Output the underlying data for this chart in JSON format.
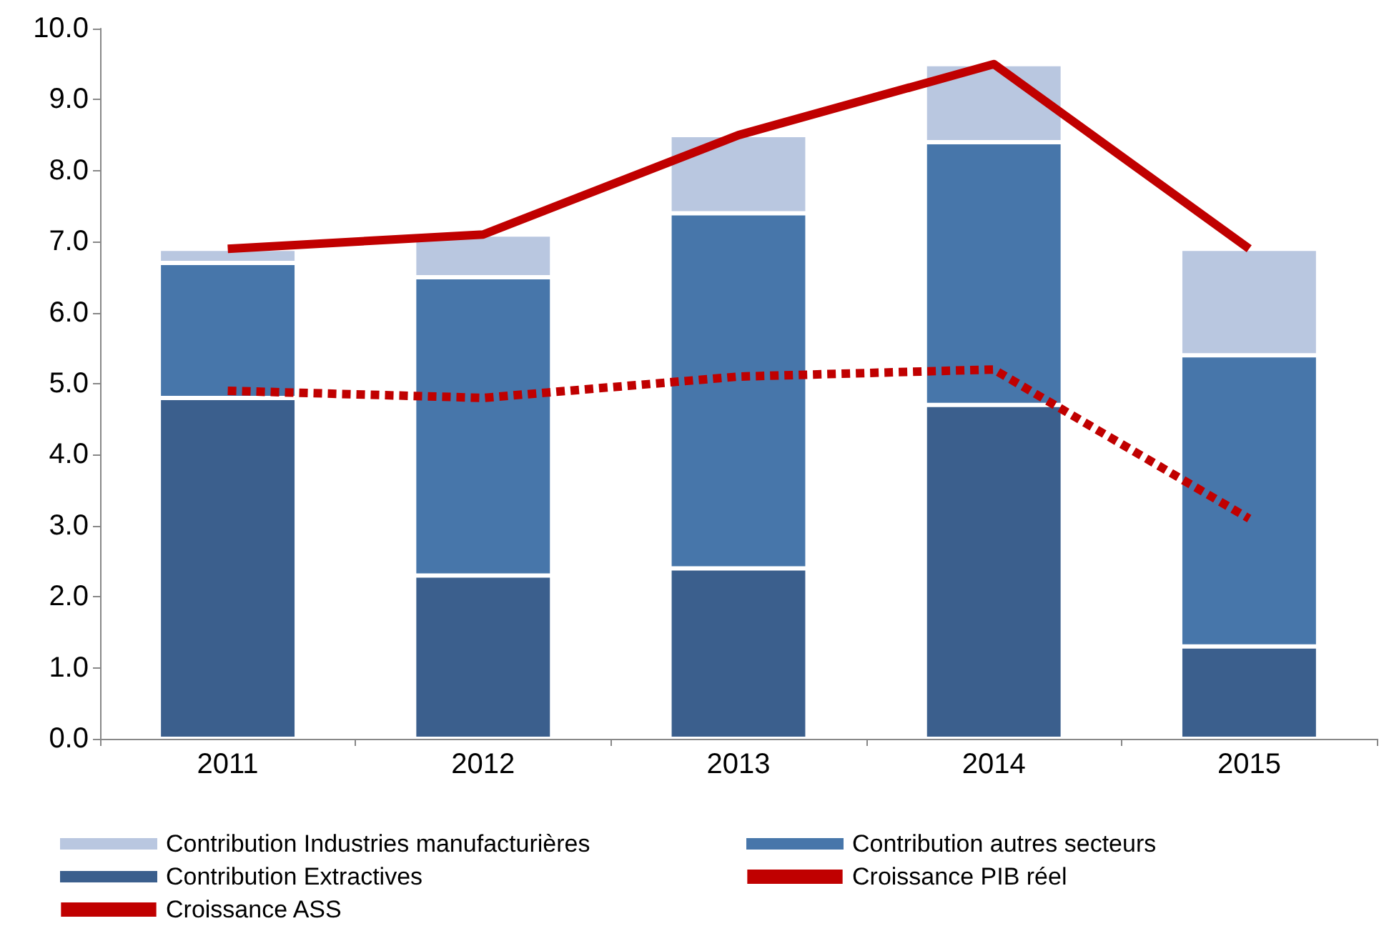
{
  "chart_data": {
    "type": "bar",
    "stacked": true,
    "categories": [
      "2011",
      "2012",
      "2013",
      "2014",
      "2015"
    ],
    "series": [
      {
        "name": "Contribution Extractives",
        "color": "#3b5f8d",
        "values": [
          4.8,
          2.3,
          2.4,
          4.7,
          1.3
        ]
      },
      {
        "name": "Contribution autres secteurs",
        "color": "#4776aa",
        "values": [
          1.9,
          4.2,
          5.0,
          3.7,
          4.1
        ]
      },
      {
        "name": "Contribution Industries manufacturières",
        "color": "#b9c7e0",
        "values": [
          0.2,
          0.6,
          1.1,
          1.1,
          1.5
        ]
      },
      {
        "name": "Croissance PIB réel",
        "type": "line",
        "color": "#c00000",
        "line_style": "solid",
        "values": [
          6.9,
          7.1,
          8.5,
          9.5,
          6.9
        ]
      },
      {
        "name": "Croissance ASS",
        "type": "line",
        "color": "#c00000",
        "line_style": "dashed",
        "values": [
          4.9,
          4.8,
          5.1,
          5.2,
          3.1
        ]
      }
    ],
    "ylim": [
      0,
      10
    ],
    "yticks": [
      {
        "value": 0,
        "label": "0.0"
      },
      {
        "value": 1,
        "label": "1.0"
      },
      {
        "value": 2,
        "label": "2.0"
      },
      {
        "value": 3,
        "label": "3.0"
      },
      {
        "value": 4,
        "label": "4.0"
      },
      {
        "value": 5,
        "label": "5.0"
      },
      {
        "value": 6,
        "label": "6.0"
      },
      {
        "value": 7,
        "label": "7.0"
      },
      {
        "value": 8,
        "label": "8.0"
      },
      {
        "value": 9,
        "label": "9.0"
      },
      {
        "value": 10,
        "label": "10.0"
      }
    ],
    "grid": false,
    "legend": "bottom",
    "marker": "none"
  }
}
